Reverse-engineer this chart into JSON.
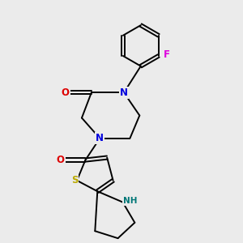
{
  "background_color": "#ebebeb",
  "atom_colors": {
    "C": "#000000",
    "N": "#0000dd",
    "O": "#dd0000",
    "S": "#bbaa00",
    "F": "#dd00dd",
    "H": "#007777"
  },
  "bond_color": "#000000",
  "bond_width": 1.4,
  "font_size_atom": 8.5,
  "font_size_nh": 7.5
}
